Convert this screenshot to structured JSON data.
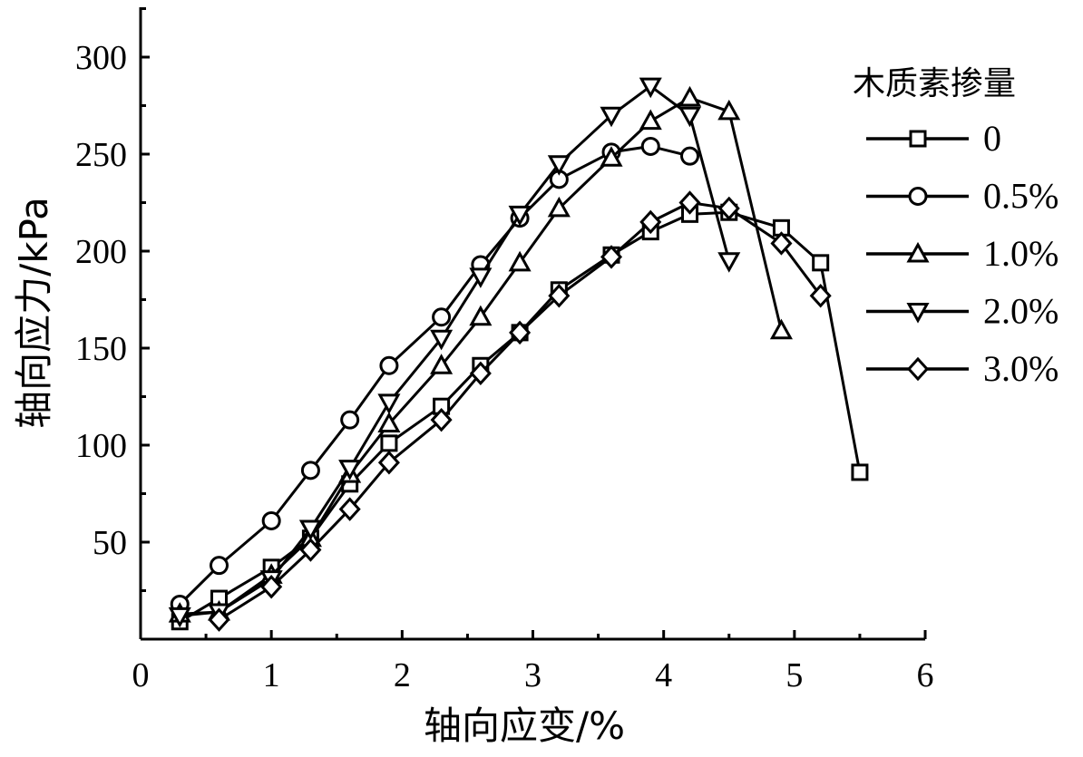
{
  "chart_data": {
    "type": "line",
    "title": "",
    "xlabel": "轴向应变/%",
    "ylabel": "轴向应力/kPa",
    "xlim": [
      0,
      6
    ],
    "ylim": [
      0,
      320
    ],
    "xticks": [
      0,
      1,
      2,
      3,
      4,
      5,
      6
    ],
    "yticks": [
      50,
      100,
      150,
      200,
      250,
      300
    ],
    "grid": false,
    "legend": {
      "title": "木质素掺量",
      "position": "top-right"
    },
    "series": [
      {
        "name": "0",
        "marker": "square",
        "x": [
          0.3,
          0.6,
          1.0,
          1.3,
          1.6,
          1.9,
          2.3,
          2.6,
          2.9,
          3.2,
          3.6,
          3.9,
          4.2,
          4.5,
          4.9,
          5.2,
          5.5
        ],
        "y": [
          9,
          21,
          37,
          52,
          80,
          101,
          120,
          141,
          158,
          180,
          198,
          210,
          219,
          220,
          212,
          194,
          86
        ]
      },
      {
        "name": "0.5%",
        "marker": "circle",
        "x": [
          0.3,
          0.6,
          1.0,
          1.3,
          1.6,
          1.9,
          2.3,
          2.6,
          2.9,
          3.2,
          3.6,
          3.9,
          4.2
        ],
        "y": [
          18,
          38,
          61,
          87,
          113,
          141,
          166,
          193,
          217,
          237,
          251,
          254,
          249
        ]
      },
      {
        "name": "1.0%",
        "marker": "triangle-up",
        "x": [
          0.3,
          0.6,
          1.0,
          1.3,
          1.6,
          1.9,
          2.3,
          2.6,
          2.9,
          3.2,
          3.6,
          3.9,
          4.2,
          4.5,
          4.9
        ],
        "y": [
          13,
          14,
          33,
          52,
          85,
          111,
          141,
          166,
          194,
          222,
          248,
          267,
          279,
          272,
          159
        ]
      },
      {
        "name": "2.0%",
        "marker": "triangle-down",
        "x": [
          0.3,
          0.6,
          1.0,
          1.3,
          1.6,
          1.9,
          2.3,
          2.6,
          2.9,
          3.2,
          3.6,
          3.9,
          4.2,
          4.5
        ],
        "y": [
          12,
          14,
          31,
          57,
          88,
          122,
          155,
          187,
          219,
          245,
          270,
          285,
          270,
          195
        ]
      },
      {
        "name": "3.0%",
        "marker": "diamond",
        "x": [
          0.6,
          1.0,
          1.3,
          1.6,
          1.9,
          2.3,
          2.6,
          2.9,
          3.2,
          3.6,
          3.9,
          4.2,
          4.5,
          4.9,
          5.2
        ],
        "y": [
          10,
          27,
          46,
          67,
          91,
          113,
          137,
          158,
          177,
          197,
          215,
          225,
          222,
          204,
          177
        ]
      }
    ]
  }
}
